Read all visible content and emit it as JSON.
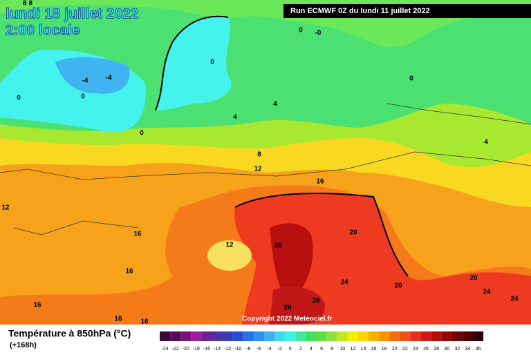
{
  "header": {
    "title": "lundi 18 juillet 2022",
    "subtitle": "2:00 locale",
    "run": "Run ECMWF 0Z du lundi 11 juillet 2022"
  },
  "map": {
    "copyright": "Copyright 2022 Meteociel.fr",
    "contour_labels": [
      "8 8",
      "0",
      "-0",
      "-4",
      "-4",
      "0",
      "0",
      "0",
      "0",
      "4",
      "4",
      "0",
      "8",
      "12",
      "16",
      "4",
      "12",
      "16",
      "12",
      "28",
      "20",
      "16",
      "24",
      "20",
      "20",
      "24",
      "24",
      "16",
      "28",
      "28",
      "16",
      "16"
    ]
  },
  "legend": {
    "title": "Température à 850hPa (°C)",
    "lead": "(+168h)",
    "labels": [
      "-24",
      "-22",
      "-20",
      "-18",
      "-16",
      "-14",
      "-12",
      "-10",
      "-8",
      "-6",
      "-4",
      "-2",
      "0",
      "2",
      "4",
      "6",
      "8",
      "10",
      "12",
      "14",
      "16",
      "18",
      "20",
      "22",
      "24",
      "26",
      "28",
      "30",
      "32",
      "34",
      "36"
    ],
    "colors": [
      "#3a0a3a",
      "#5a0a5a",
      "#7a107a",
      "#9a209a",
      "#702090",
      "#5030a0",
      "#3040b0",
      "#2050d0",
      "#2070f0",
      "#3090f0",
      "#40b0f0",
      "#40d8f0",
      "#40f0e0",
      "#40e8a0",
      "#40e060",
      "#60e040",
      "#90e040",
      "#c0e820",
      "#f0f000",
      "#f8d800",
      "#f8b000",
      "#f89000",
      "#f07010",
      "#f05018",
      "#e83020",
      "#d01818",
      "#b00c0c",
      "#900808",
      "#700404",
      "#500000",
      "#300000"
    ]
  }
}
